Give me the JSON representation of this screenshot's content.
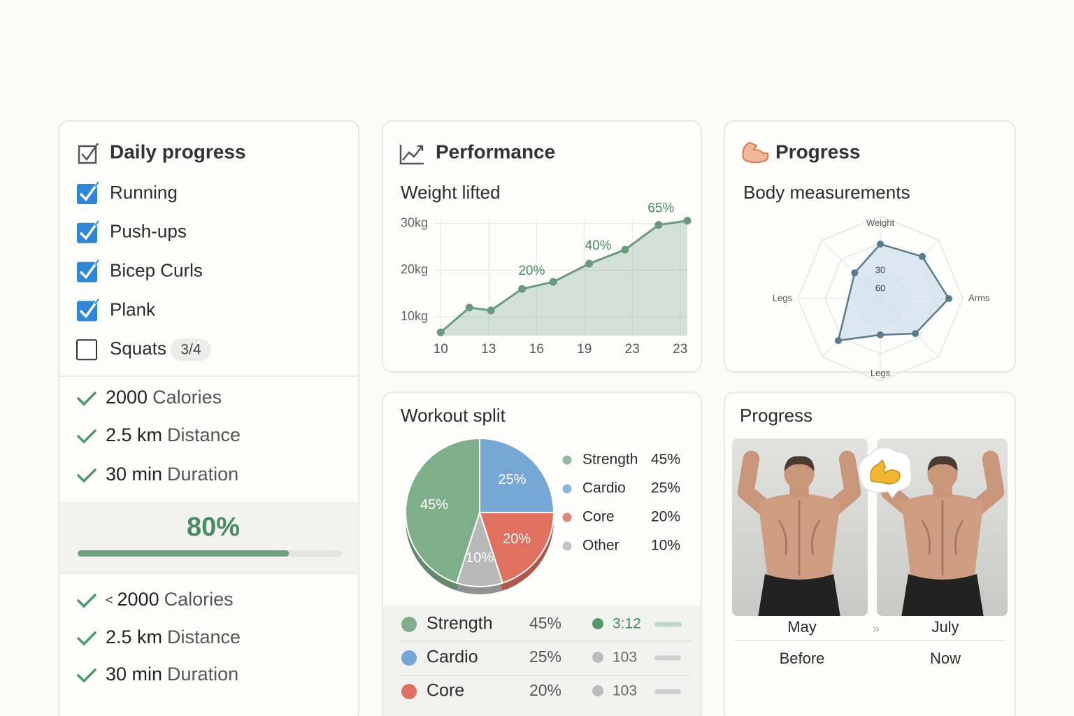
{
  "cards": {
    "daily": "Daily progress",
    "performance": "Performance",
    "progress": "Progress"
  },
  "daily_progress": {
    "tasks": [
      {
        "label": "Running",
        "done": true
      },
      {
        "label": "Push-ups",
        "done": true
      },
      {
        "label": "Bicep Curls",
        "done": true
      },
      {
        "label": "Plank",
        "done": true
      },
      {
        "label": "Squats",
        "done": false,
        "badge": "3/4"
      }
    ],
    "goals": [
      {
        "value": "2000",
        "unit": "Calories"
      },
      {
        "value": "2.5 km",
        "unit": "Distance"
      },
      {
        "value": "30 min",
        "unit": "Duration"
      }
    ],
    "completion": {
      "value": 80,
      "label": "80%",
      "xlim": [
        0,
        100
      ],
      "color": "#6ea27f"
    },
    "limits": [
      {
        "prefix": "<",
        "value": "2000",
        "unit": "Calories"
      },
      {
        "value": "2.5 km",
        "unit": "Distance"
      },
      {
        "value": "30 min",
        "unit": "Duration"
      }
    ]
  },
  "chart_data": [
    {
      "type": "line",
      "title": "Weight lifted",
      "x": [
        0,
        0.6,
        1.05,
        1.7,
        2.35,
        3.1,
        3.85,
        4.55,
        5.15
      ],
      "values": [
        6.7,
        12,
        11.4,
        16,
        17.5,
        21.4,
        24.4,
        29.7,
        30.6
      ],
      "color": "#6a9a7c",
      "area": true,
      "grid": true,
      "xlim": [
        -0.12,
        5.15
      ],
      "xticks": [
        {
          "value": 0,
          "label": "10"
        },
        {
          "value": 1,
          "label": "13"
        },
        {
          "value": 2,
          "label": "16"
        },
        {
          "value": 3,
          "label": "19"
        },
        {
          "value": 4,
          "label": "23"
        },
        {
          "value": 5,
          "label": "23"
        }
      ],
      "ylim": [
        6,
        31
      ],
      "yticks": [
        {
          "value": 10,
          "label": "10kg"
        },
        {
          "value": 20,
          "label": "20kg"
        },
        {
          "value": 30,
          "label": "30kg"
        }
      ],
      "annotations": [
        {
          "text": "20%",
          "x": 1.9,
          "y": 19.8
        },
        {
          "text": "40%",
          "x": 3.29,
          "y": 25.2
        },
        {
          "text": "65%",
          "x": 4.6,
          "y": 33.2
        }
      ]
    },
    {
      "type": "radar",
      "title": "Body measurements",
      "axes": [
        "Weight",
        null,
        "Arms",
        null,
        "Legs",
        null,
        "Legs",
        null
      ],
      "values": [
        66,
        72,
        83,
        60,
        44,
        72,
        null,
        44
      ],
      "rlim": [
        0,
        100
      ],
      "rticks": [
        33,
        67,
        100
      ],
      "ring_labels": [
        "30",
        "60"
      ],
      "color": "#5a7a8e"
    },
    {
      "type": "pie",
      "title": "Workout split",
      "categories": [
        "Strength",
        "Cardio",
        "Core",
        "Other"
      ],
      "values": [
        45,
        25,
        20,
        10
      ],
      "value_labels": [
        "45%",
        "25%",
        "20%",
        "10%"
      ],
      "colors": [
        "#7fae8a",
        "#76a8d6",
        "#e07060",
        "#b8b8b8"
      ],
      "legend": "right"
    }
  ],
  "split_table": {
    "rows": [
      [
        "Strength",
        "45%",
        "3:12"
      ],
      [
        "Cardio",
        "25%",
        "103"
      ],
      [
        "Core",
        "20%",
        "103"
      ]
    ]
  },
  "photos": {
    "title": "Progress",
    "months": [
      "May",
      "July"
    ],
    "separator": "»",
    "captions": [
      "Before",
      "Now"
    ]
  }
}
